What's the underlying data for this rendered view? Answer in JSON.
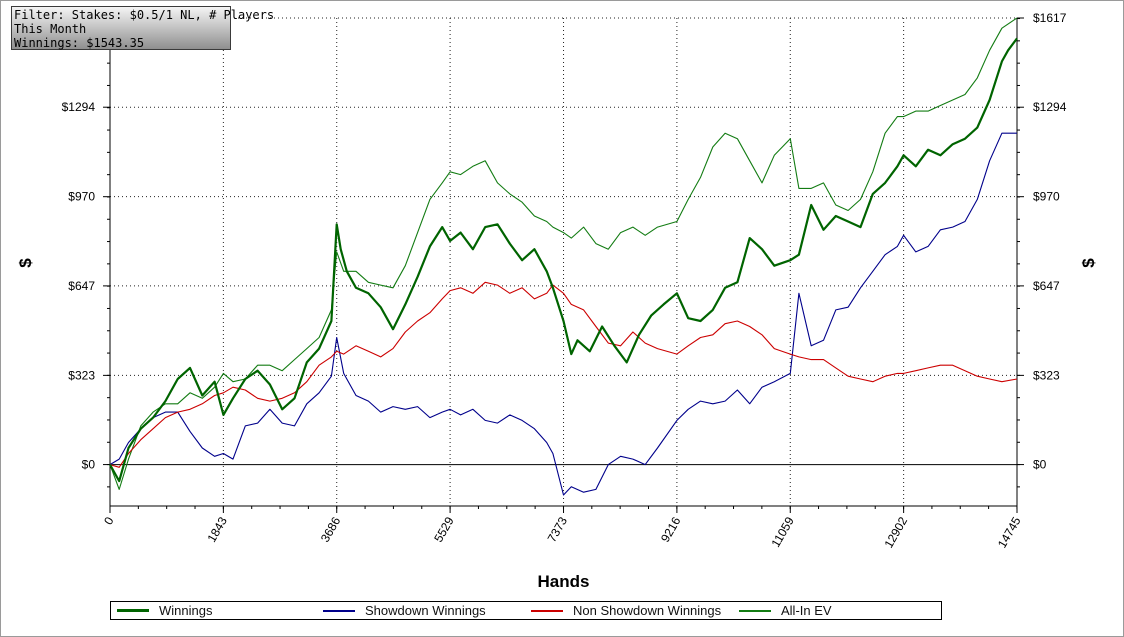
{
  "info_box": {
    "filter_line": "Filter: Stakes: $0.5/1 NL, # Players",
    "period_line": "This Month",
    "winnings_line": "Winnings: $1543.35"
  },
  "chart_data": {
    "type": "line",
    "xlabel": "Hands",
    "ylabel": "$",
    "ylabel_right": "$",
    "xlim": [
      0,
      14745
    ],
    "ylim": [
      -150,
      1617
    ],
    "x_ticks": [
      0,
      1843,
      3686,
      5529,
      7373,
      9216,
      11059,
      12902,
      14745
    ],
    "y_ticks": [
      0,
      323,
      647,
      970,
      1294,
      1617
    ],
    "y_tick_labels_left": [
      "$0",
      "$323",
      "$647",
      "$970",
      "$1294",
      ""
    ],
    "y_tick_labels_right": [
      "$0",
      "$323",
      "$647",
      "$970",
      "$1294",
      "$1617"
    ],
    "grid": true,
    "legend_position": "bottom",
    "series": [
      {
        "name": "Winnings",
        "color": "#006400",
        "width": 2.2,
        "x": [
          0,
          150,
          300,
          500,
          700,
          900,
          1100,
          1300,
          1500,
          1700,
          1843,
          2000,
          2200,
          2400,
          2600,
          2800,
          3000,
          3200,
          3400,
          3600,
          3686,
          3750,
          3850,
          4000,
          4200,
          4400,
          4600,
          4800,
          5000,
          5200,
          5400,
          5529,
          5700,
          5900,
          6100,
          6300,
          6500,
          6700,
          6900,
          7100,
          7200,
          7373,
          7500,
          7600,
          7800,
          8000,
          8200,
          8400,
          8600,
          8800,
          9000,
          9216,
          9400,
          9600,
          9800,
          10000,
          10200,
          10400,
          10600,
          10800,
          11059,
          11200,
          11400,
          11600,
          11800,
          12000,
          12200,
          12400,
          12600,
          12800,
          12902,
          13100,
          13300,
          13500,
          13700,
          13900,
          14100,
          14300,
          14500,
          14600,
          14745
        ],
        "y": [
          0,
          -60,
          60,
          130,
          170,
          230,
          310,
          350,
          250,
          300,
          180,
          240,
          310,
          340,
          290,
          200,
          240,
          370,
          420,
          520,
          870,
          780,
          700,
          640,
          620,
          570,
          490,
          580,
          680,
          790,
          860,
          810,
          840,
          780,
          860,
          870,
          800,
          740,
          780,
          700,
          640,
          520,
          400,
          450,
          410,
          500,
          430,
          370,
          470,
          540,
          580,
          620,
          530,
          520,
          560,
          640,
          660,
          820,
          780,
          720,
          740,
          760,
          940,
          850,
          900,
          880,
          860,
          980,
          1020,
          1080,
          1120,
          1080,
          1140,
          1120,
          1160,
          1180,
          1220,
          1320,
          1460,
          1500,
          1543
        ]
      },
      {
        "name": "Showdown Winnings",
        "color": "#00008b",
        "width": 1.1,
        "x": [
          0,
          150,
          300,
          500,
          700,
          900,
          1100,
          1300,
          1500,
          1700,
          1843,
          2000,
          2200,
          2400,
          2600,
          2800,
          3000,
          3200,
          3400,
          3600,
          3686,
          3800,
          4000,
          4200,
          4400,
          4600,
          4800,
          5000,
          5200,
          5400,
          5529,
          5700,
          5900,
          6100,
          6300,
          6500,
          6700,
          6900,
          7100,
          7200,
          7373,
          7500,
          7700,
          7900,
          8100,
          8300,
          8500,
          8700,
          8900,
          9216,
          9400,
          9600,
          9800,
          10000,
          10200,
          10400,
          10600,
          10800,
          11059,
          11200,
          11400,
          11600,
          11800,
          12000,
          12200,
          12400,
          12600,
          12800,
          12902,
          13100,
          13300,
          13500,
          13700,
          13900,
          14100,
          14300,
          14500,
          14745
        ],
        "y": [
          0,
          20,
          80,
          130,
          170,
          190,
          190,
          120,
          60,
          30,
          40,
          20,
          140,
          150,
          200,
          150,
          140,
          220,
          260,
          320,
          460,
          330,
          250,
          230,
          190,
          210,
          200,
          210,
          170,
          190,
          200,
          180,
          200,
          160,
          150,
          180,
          160,
          130,
          80,
          40,
          -110,
          -80,
          -100,
          -90,
          0,
          30,
          20,
          0,
          60,
          160,
          200,
          230,
          220,
          230,
          270,
          220,
          280,
          300,
          330,
          620,
          430,
          450,
          560,
          570,
          640,
          700,
          760,
          790,
          830,
          770,
          790,
          850,
          860,
          880,
          960,
          1100,
          1200,
          1200
        ]
      },
      {
        "name": "Non Showdown Winnings",
        "color": "#cc0000",
        "width": 1.1,
        "x": [
          0,
          150,
          300,
          500,
          700,
          900,
          1100,
          1300,
          1500,
          1700,
          1843,
          2000,
          2200,
          2400,
          2600,
          2800,
          3000,
          3200,
          3400,
          3600,
          3686,
          3800,
          4000,
          4200,
          4400,
          4600,
          4800,
          5000,
          5200,
          5400,
          5529,
          5700,
          5900,
          6100,
          6300,
          6500,
          6700,
          6900,
          7100,
          7200,
          7373,
          7500,
          7700,
          7900,
          8100,
          8300,
          8500,
          8700,
          8900,
          9216,
          9400,
          9600,
          9800,
          10000,
          10200,
          10400,
          10600,
          10800,
          11059,
          11200,
          11400,
          11600,
          11800,
          12000,
          12200,
          12400,
          12600,
          12800,
          12902,
          13100,
          13300,
          13500,
          13700,
          13900,
          14100,
          14300,
          14500,
          14745
        ],
        "y": [
          0,
          -10,
          40,
          90,
          130,
          170,
          190,
          200,
          220,
          250,
          260,
          280,
          270,
          240,
          230,
          240,
          260,
          300,
          360,
          390,
          410,
          400,
          430,
          410,
          390,
          420,
          480,
          520,
          550,
          600,
          630,
          640,
          620,
          660,
          650,
          620,
          640,
          600,
          620,
          650,
          620,
          580,
          560,
          500,
          440,
          430,
          480,
          440,
          420,
          400,
          430,
          460,
          470,
          510,
          520,
          500,
          470,
          420,
          400,
          390,
          380,
          380,
          350,
          320,
          310,
          300,
          320,
          330,
          330,
          340,
          350,
          360,
          360,
          340,
          320,
          310,
          300,
          310
        ]
      },
      {
        "name": "All-In EV",
        "color": "#137c13",
        "width": 1.1,
        "x": [
          0,
          150,
          300,
          500,
          700,
          900,
          1100,
          1300,
          1500,
          1700,
          1843,
          2000,
          2200,
          2400,
          2600,
          2800,
          3000,
          3200,
          3400,
          3600,
          3686,
          3800,
          4000,
          4200,
          4400,
          4600,
          4800,
          5000,
          5200,
          5400,
          5529,
          5700,
          5900,
          6100,
          6300,
          6500,
          6700,
          6900,
          7100,
          7200,
          7373,
          7500,
          7700,
          7900,
          8100,
          8300,
          8500,
          8700,
          8900,
          9216,
          9400,
          9600,
          9800,
          10000,
          10200,
          10400,
          10600,
          10800,
          11059,
          11200,
          11400,
          11600,
          11800,
          12000,
          12200,
          12400,
          12600,
          12800,
          12902,
          13100,
          13300,
          13500,
          13700,
          13900,
          14100,
          14300,
          14500,
          14745
        ],
        "y": [
          0,
          -90,
          20,
          140,
          190,
          220,
          220,
          260,
          240,
          280,
          330,
          300,
          310,
          360,
          360,
          340,
          380,
          420,
          460,
          560,
          770,
          700,
          700,
          660,
          650,
          640,
          720,
          840,
          960,
          1020,
          1060,
          1050,
          1080,
          1100,
          1020,
          980,
          950,
          900,
          880,
          860,
          840,
          820,
          860,
          800,
          780,
          840,
          860,
          830,
          860,
          880,
          960,
          1040,
          1150,
          1200,
          1180,
          1100,
          1020,
          1120,
          1180,
          1000,
          1000,
          1020,
          940,
          920,
          960,
          1060,
          1200,
          1260,
          1260,
          1280,
          1280,
          1300,
          1320,
          1340,
          1400,
          1500,
          1580,
          1617
        ]
      }
    ]
  }
}
